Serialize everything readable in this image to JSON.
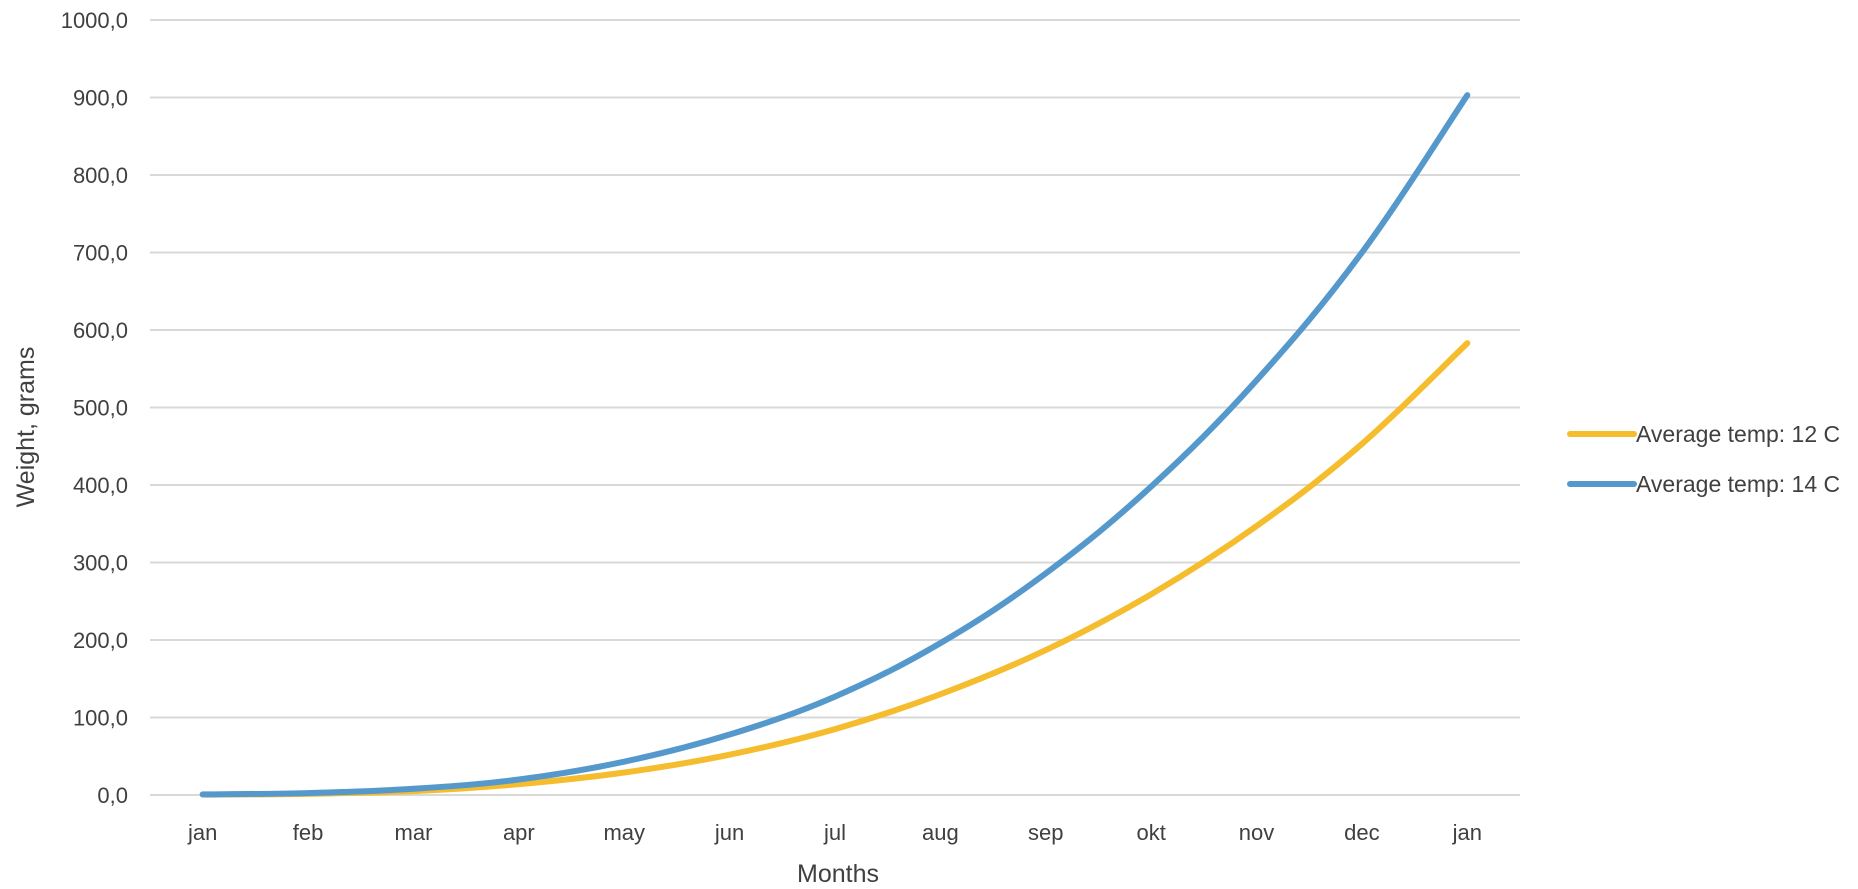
{
  "chart_data": {
    "type": "line",
    "title": "",
    "xlabel": "Months",
    "ylabel": "Weight, grams",
    "categories": [
      "jan",
      "feb",
      "mar",
      "apr",
      "may",
      "jun",
      "jul",
      "aug",
      "sep",
      "okt",
      "nov",
      "dec",
      "jan"
    ],
    "ylim": [
      0,
      1000
    ],
    "yticks": [
      "0,0",
      "100,0",
      "200,0",
      "300,0",
      "400,0",
      "500,0",
      "600,0",
      "700,0",
      "800,0",
      "900,0",
      "1000,0"
    ],
    "grid": "horizontal",
    "legend_position": "right",
    "series": [
      {
        "name": "Average temp: 12 C",
        "color": "#F5BD2E",
        "values": [
          0.5,
          1.5,
          5,
          14,
          29,
          52,
          85,
          130,
          187,
          259,
          347,
          453,
          583
        ]
      },
      {
        "name": "Average temp: 14 C",
        "color": "#5599CC",
        "values": [
          0.8,
          2.5,
          8,
          20,
          43,
          78,
          127,
          196,
          286,
          398,
          535,
          700,
          903
        ]
      }
    ]
  }
}
